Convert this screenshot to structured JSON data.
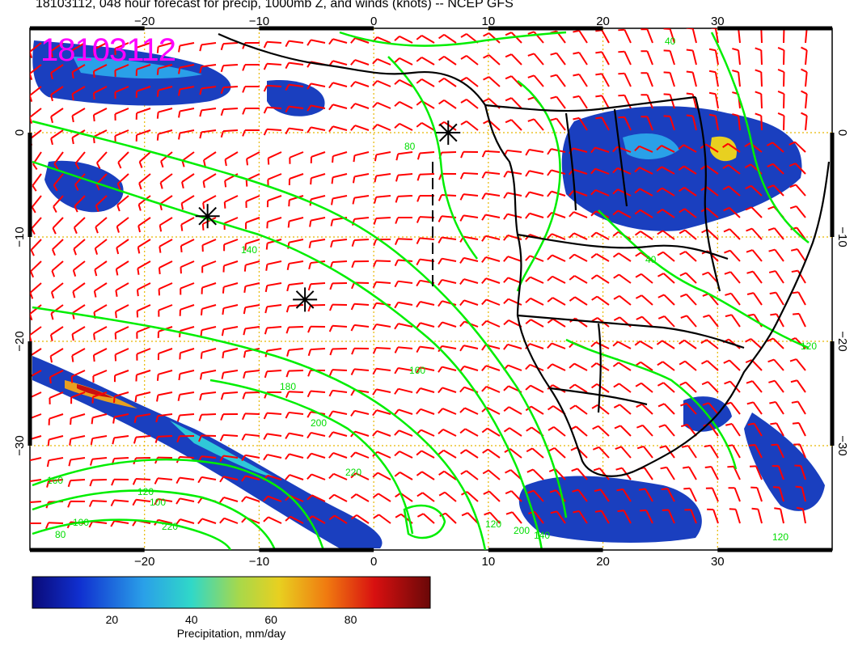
{
  "title": "18103112, 048 hour forecast for precip, 1000mb Z, and winds (knots) -- NCEP GFS",
  "stamp": "18103112",
  "map": {
    "lon_ticks": [
      {
        "value": -20,
        "label": "−20"
      },
      {
        "value": -10,
        "label": "−10"
      },
      {
        "value": 0,
        "label": "0"
      },
      {
        "value": 10,
        "label": "10"
      },
      {
        "value": 20,
        "label": "20"
      },
      {
        "value": 30,
        "label": "30"
      }
    ],
    "lat_ticks": [
      {
        "value": 0,
        "label": "0"
      },
      {
        "value": -10,
        "label": "−10"
      },
      {
        "value": -20,
        "label": "−20"
      },
      {
        "value": -30,
        "label": "−30"
      }
    ],
    "lon_range": [
      -30,
      40
    ],
    "lat_range": [
      -40,
      10
    ],
    "contour_labels": [
      "40",
      "80",
      "140",
      "160",
      "180",
      "200",
      "220",
      "160",
      "120",
      "100",
      "80",
      "100",
      "120",
      "140",
      "120",
      "200",
      "220",
      "40",
      "120"
    ],
    "high_markers": [
      {
        "lon": 6.5,
        "lat": 0
      },
      {
        "lon": -14.5,
        "lat": -8
      },
      {
        "lon": -6,
        "lat": -16
      }
    ],
    "colors": {
      "wind_barbs": "#ff0000",
      "height_contours": "#00ee00",
      "precip_shading": "#1a3fbf",
      "coastlines": "#000000",
      "graticule": "#e8b800"
    }
  },
  "colorbar": {
    "label": "Precipitation, mm/day",
    "ticks": [
      "20",
      "40",
      "60",
      "80"
    ],
    "range": [
      0,
      100
    ],
    "tick_values": [
      20,
      40,
      60,
      80
    ]
  }
}
